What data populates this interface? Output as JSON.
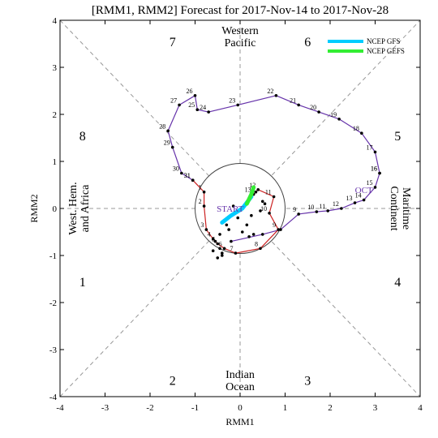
{
  "chart_data": {
    "type": "line",
    "title": "[RMM1, RMM2] Forecast for 2017-Nov-14 to 2017-Nov-28",
    "xlabel": "RMM1",
    "ylabel": "RMM2",
    "xlim": [
      -4,
      4
    ],
    "ylim": [
      -4,
      4
    ],
    "x_ticks": [
      "-4",
      "-3",
      "-2",
      "-1",
      "0",
      "1",
      "2",
      "3",
      "4"
    ],
    "y_ticks": [
      "-4",
      "-3",
      "-2",
      "-1",
      "0",
      "1",
      "2",
      "3",
      "4"
    ],
    "grid": false,
    "phases": [
      {
        "label": "1",
        "x": -3.5,
        "y": -1.55
      },
      {
        "label": "2",
        "x": -1.5,
        "y": -3.65
      },
      {
        "label": "3",
        "x": 1.5,
        "y": -3.65
      },
      {
        "label": "4",
        "x": 3.5,
        "y": -1.55
      },
      {
        "label": "5",
        "x": 3.5,
        "y": 1.55
      },
      {
        "label": "6",
        "x": 1.5,
        "y": 3.55
      },
      {
        "label": "7",
        "x": -1.5,
        "y": 3.55
      },
      {
        "label": "8",
        "x": -3.5,
        "y": 1.55
      }
    ],
    "regions": {
      "top": [
        "Western",
        "Pacific"
      ],
      "bottom": [
        "Indian",
        "Ocean"
      ],
      "left": [
        "West. Hem.",
        "and Africa"
      ],
      "right": [
        "Maritime",
        "Continent"
      ]
    },
    "legend": {
      "placement": "top-right",
      "entries": [
        {
          "label": "NCEP GFS",
          "color": "#00ccff"
        },
        {
          "label": "NCEP GEFS",
          "color": "#33ee33"
        }
      ]
    },
    "month_labels": [
      {
        "label": "OCT",
        "x": 2.75,
        "y": 0.33,
        "color": "#6633aa"
      },
      {
        "label": "START",
        "x": -0.22,
        "y": -0.07,
        "color": "#6633aa"
      }
    ],
    "series": [
      {
        "name": "OCT",
        "color": "#6633aa",
        "points": [
          {
            "x": 3.1,
            "y": 0.75,
            "label": "16"
          },
          {
            "x": 3.0,
            "y": 0.45,
            "label": "15"
          },
          {
            "x": 2.75,
            "y": 0.18,
            "label": "14"
          },
          {
            "x": 2.55,
            "y": 0.12,
            "label": "13"
          },
          {
            "x": 2.25,
            "y": 0.0,
            "label": "12"
          },
          {
            "x": 1.95,
            "y": -0.05,
            "label": "11"
          },
          {
            "x": 1.7,
            "y": -0.07,
            "label": "10"
          },
          {
            "x": 1.3,
            "y": -0.12,
            "label": "9"
          },
          {
            "x": 0.9,
            "y": -0.45,
            "label": ""
          },
          {
            "x": 0.5,
            "y": -0.55,
            "label": ""
          },
          {
            "x": -0.2,
            "y": -0.7,
            "label": ""
          }
        ]
      },
      {
        "name": "OCT",
        "color": "#6633aa",
        "points": [
          {
            "x": 3.1,
            "y": 0.75,
            "label": "16"
          },
          {
            "x": 3.0,
            "y": 1.2,
            "label": "17"
          },
          {
            "x": 2.7,
            "y": 1.6,
            "label": "18"
          },
          {
            "x": 2.2,
            "y": 1.9,
            "label": "19"
          },
          {
            "x": 1.75,
            "y": 2.05,
            "label": "20"
          },
          {
            "x": 1.3,
            "y": 2.2,
            "label": "21"
          },
          {
            "x": 0.8,
            "y": 2.4,
            "label": "22"
          },
          {
            "x": -0.05,
            "y": 2.2,
            "label": "23"
          },
          {
            "x": -0.7,
            "y": 2.05,
            "label": "24"
          },
          {
            "x": -0.95,
            "y": 2.1,
            "label": "25"
          },
          {
            "x": -1.0,
            "y": 2.4,
            "label": "26"
          },
          {
            "x": -1.35,
            "y": 2.2,
            "label": "27"
          },
          {
            "x": -1.6,
            "y": 1.65,
            "label": "28"
          },
          {
            "x": -1.5,
            "y": 1.3,
            "label": "29"
          },
          {
            "x": -1.3,
            "y": 0.75,
            "label": "30"
          },
          {
            "x": -1.05,
            "y": 0.6,
            "label": "31"
          }
        ]
      },
      {
        "name": "NOV",
        "color": "#cc2222",
        "points": [
          {
            "x": -1.05,
            "y": 0.6,
            "label": "31"
          },
          {
            "x": -0.8,
            "y": 0.35,
            "label": "1"
          },
          {
            "x": -0.8,
            "y": 0.05,
            "label": "2"
          },
          {
            "x": -0.75,
            "y": -0.45,
            "label": "3"
          },
          {
            "x": -0.6,
            "y": -0.65,
            "label": "4"
          },
          {
            "x": -0.5,
            "y": -0.75,
            "label": "5"
          },
          {
            "x": -0.35,
            "y": -0.85,
            "label": "6"
          },
          {
            "x": -0.1,
            "y": -0.95,
            "label": "7"
          },
          {
            "x": 0.45,
            "y": -0.85,
            "label": "8"
          },
          {
            "x": 0.85,
            "y": -0.45,
            "label": "9"
          },
          {
            "x": 0.65,
            "y": -0.1,
            "label": "10"
          },
          {
            "x": 0.75,
            "y": 0.25,
            "label": "11"
          },
          {
            "x": 0.4,
            "y": 0.4,
            "label": "12"
          },
          {
            "x": 0.3,
            "y": 0.3,
            "label": "13"
          }
        ]
      },
      {
        "name": "NCEP GFS",
        "color": "#00ccff",
        "points": [
          {
            "x": 0.25,
            "y": 0.25
          },
          {
            "x": 0.05,
            "y": 0.0
          },
          {
            "x": -0.2,
            "y": -0.15
          },
          {
            "x": -0.4,
            "y": -0.3
          }
        ]
      },
      {
        "name": "NCEP GEFS",
        "color": "#33ee33",
        "points": [
          {
            "x": 0.3,
            "y": 0.45
          },
          {
            "x": 0.25,
            "y": 0.3
          },
          {
            "x": 0.15,
            "y": 0.1
          }
        ]
      },
      {
        "name": "members",
        "color": "#000000",
        "points": [
          {
            "x": 0.35,
            "y": 0.35
          },
          {
            "x": 0.55,
            "y": 0.1
          },
          {
            "x": 0.45,
            "y": -0.05
          },
          {
            "x": 0.25,
            "y": -0.15
          },
          {
            "x": -0.05,
            "y": -0.2
          },
          {
            "x": -0.3,
            "y": -0.35
          },
          {
            "x": -0.45,
            "y": -0.55
          },
          {
            "x": -0.55,
            "y": -0.7
          },
          {
            "x": -0.45,
            "y": -0.85
          },
          {
            "x": -0.4,
            "y": -0.95
          },
          {
            "x": -0.5,
            "y": -1.05
          },
          {
            "x": -0.4,
            "y": -1.0
          },
          {
            "x": 0.3,
            "y": -0.55
          },
          {
            "x": 0.2,
            "y": -0.6
          },
          {
            "x": 0.05,
            "y": -0.5
          },
          {
            "x": -0.15,
            "y": 0.05
          },
          {
            "x": 0.5,
            "y": 0.15
          },
          {
            "x": 0.15,
            "y": -0.35
          },
          {
            "x": -0.6,
            "y": -0.9
          },
          {
            "x": -0.25,
            "y": -0.45
          }
        ]
      }
    ]
  }
}
